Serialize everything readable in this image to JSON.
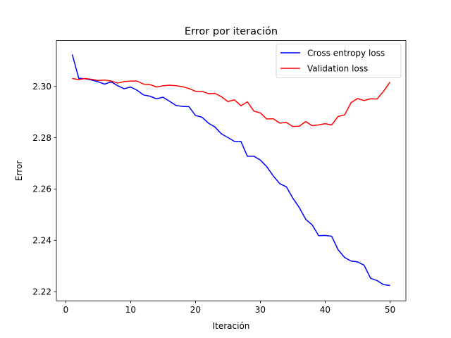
{
  "chart_data": {
    "type": "line",
    "title": "Error por iteración",
    "xlabel": "Iteración",
    "ylabel": "Error",
    "xlim": [
      -1.45,
      52.45
    ],
    "ylim": [
      2.2164,
      2.3179
    ],
    "xticks": [
      0,
      10,
      20,
      30,
      40,
      50
    ],
    "xtick_labels": [
      "0",
      "10",
      "20",
      "30",
      "40",
      "50"
    ],
    "yticks": [
      2.22,
      2.24,
      2.26,
      2.28,
      2.3
    ],
    "ytick_labels": [
      "2.22",
      "2.24",
      "2.26",
      "2.28",
      "2.30"
    ],
    "grid": false,
    "legend_position": "upper right",
    "x": [
      1,
      2,
      3,
      4,
      5,
      6,
      7,
      8,
      9,
      10,
      11,
      12,
      13,
      14,
      15,
      16,
      17,
      18,
      19,
      20,
      21,
      22,
      23,
      24,
      25,
      26,
      27,
      28,
      29,
      30,
      31,
      32,
      33,
      34,
      35,
      36,
      37,
      38,
      39,
      40,
      41,
      42,
      43,
      44,
      45,
      46,
      47,
      48,
      49,
      50
    ],
    "series": [
      {
        "name": "Cross entropy loss",
        "color": "#0000ff",
        "values": [
          2.3125,
          2.3032,
          2.303,
          2.3025,
          2.3018,
          2.3009,
          2.3018,
          2.3003,
          2.2991,
          2.2998,
          2.2985,
          2.2967,
          2.2962,
          2.2952,
          2.2958,
          2.2942,
          2.2926,
          2.2922,
          2.2921,
          2.2887,
          2.288,
          2.2857,
          2.2842,
          2.2815,
          2.2801,
          2.2786,
          2.2786,
          2.2728,
          2.2728,
          2.2713,
          2.2687,
          2.2651,
          2.2621,
          2.2609,
          2.2565,
          2.2528,
          2.2482,
          2.246,
          2.2418,
          2.2419,
          2.2416,
          2.2363,
          2.2333,
          2.2319,
          2.2316,
          2.2303,
          2.2252,
          2.2243,
          2.2227,
          2.2224
        ]
      },
      {
        "name": "Validation loss",
        "color": "#ff0000",
        "values": [
          2.3031,
          2.3027,
          2.3031,
          2.3028,
          2.3023,
          2.3025,
          2.3021,
          2.3013,
          2.3019,
          2.3021,
          2.3021,
          2.3009,
          2.3007,
          2.2998,
          2.3003,
          2.3005,
          2.3003,
          2.2999,
          2.2992,
          2.2981,
          2.2981,
          2.2972,
          2.2973,
          2.296,
          2.2941,
          2.2948,
          2.2925,
          2.294,
          2.2904,
          2.2897,
          2.2873,
          2.2874,
          2.2857,
          2.286,
          2.2844,
          2.2845,
          2.2863,
          2.2847,
          2.285,
          2.2855,
          2.285,
          2.2883,
          2.2889,
          2.2937,
          2.2953,
          2.2945,
          2.2952,
          2.2951,
          2.2981,
          2.3017
        ]
      }
    ]
  }
}
